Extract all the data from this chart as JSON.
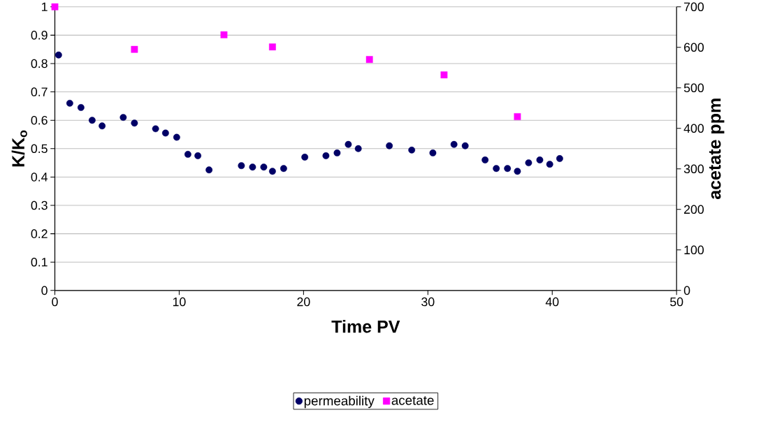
{
  "chart_data": {
    "type": "scatter",
    "xlabel": "Time PV",
    "ylabel": "K/K$_{o}$",
    "y2label": "acetate ppm",
    "xlim": [
      0,
      50
    ],
    "xticks": [
      0,
      10,
      20,
      30,
      40,
      50
    ],
    "ylim": [
      0,
      1
    ],
    "yticks": [
      0,
      0.1,
      0.2,
      0.3,
      0.4,
      0.5,
      0.6,
      0.7,
      0.8,
      0.9,
      1
    ],
    "y2lim": [
      0,
      700
    ],
    "y2ticks": [
      0,
      100,
      200,
      300,
      400,
      500,
      600,
      700
    ],
    "grid": "y",
    "legend": "bottom",
    "series": [
      {
        "name": "permeability",
        "color": "#000066",
        "marker": "circle",
        "x": [
          0.3,
          1.2,
          2.1,
          3.0,
          3.8,
          5.5,
          6.4,
          8.1,
          8.9,
          9.8,
          10.7,
          11.5,
          12.4,
          15.0,
          15.9,
          16.8,
          17.5,
          18.4,
          20.1,
          21.8,
          22.7,
          23.6,
          24.4,
          26.9,
          28.7,
          30.4,
          32.1,
          33.0,
          34.6,
          35.5,
          36.4,
          37.2,
          38.1,
          39.0,
          39.8,
          40.6
        ],
        "values": [
          0.83,
          0.66,
          0.645,
          0.6,
          0.58,
          0.61,
          0.59,
          0.57,
          0.555,
          0.54,
          0.48,
          0.475,
          0.425,
          0.44,
          0.435,
          0.435,
          0.42,
          0.43,
          0.47,
          0.475,
          0.485,
          0.515,
          0.5,
          0.51,
          0.495,
          0.485,
          0.515,
          0.51,
          0.46,
          0.43,
          0.43,
          0.42,
          0.45,
          0.46,
          0.445,
          0.465
        ]
      },
      {
        "name": "acetate",
        "color": "#ff00ff",
        "marker": "square",
        "axis": "y2",
        "x": [
          0,
          6.4,
          13.6,
          17.5,
          25.3,
          31.3,
          37.2
        ],
        "values": [
          700,
          595,
          631,
          601,
          570,
          532,
          429
        ]
      }
    ]
  }
}
